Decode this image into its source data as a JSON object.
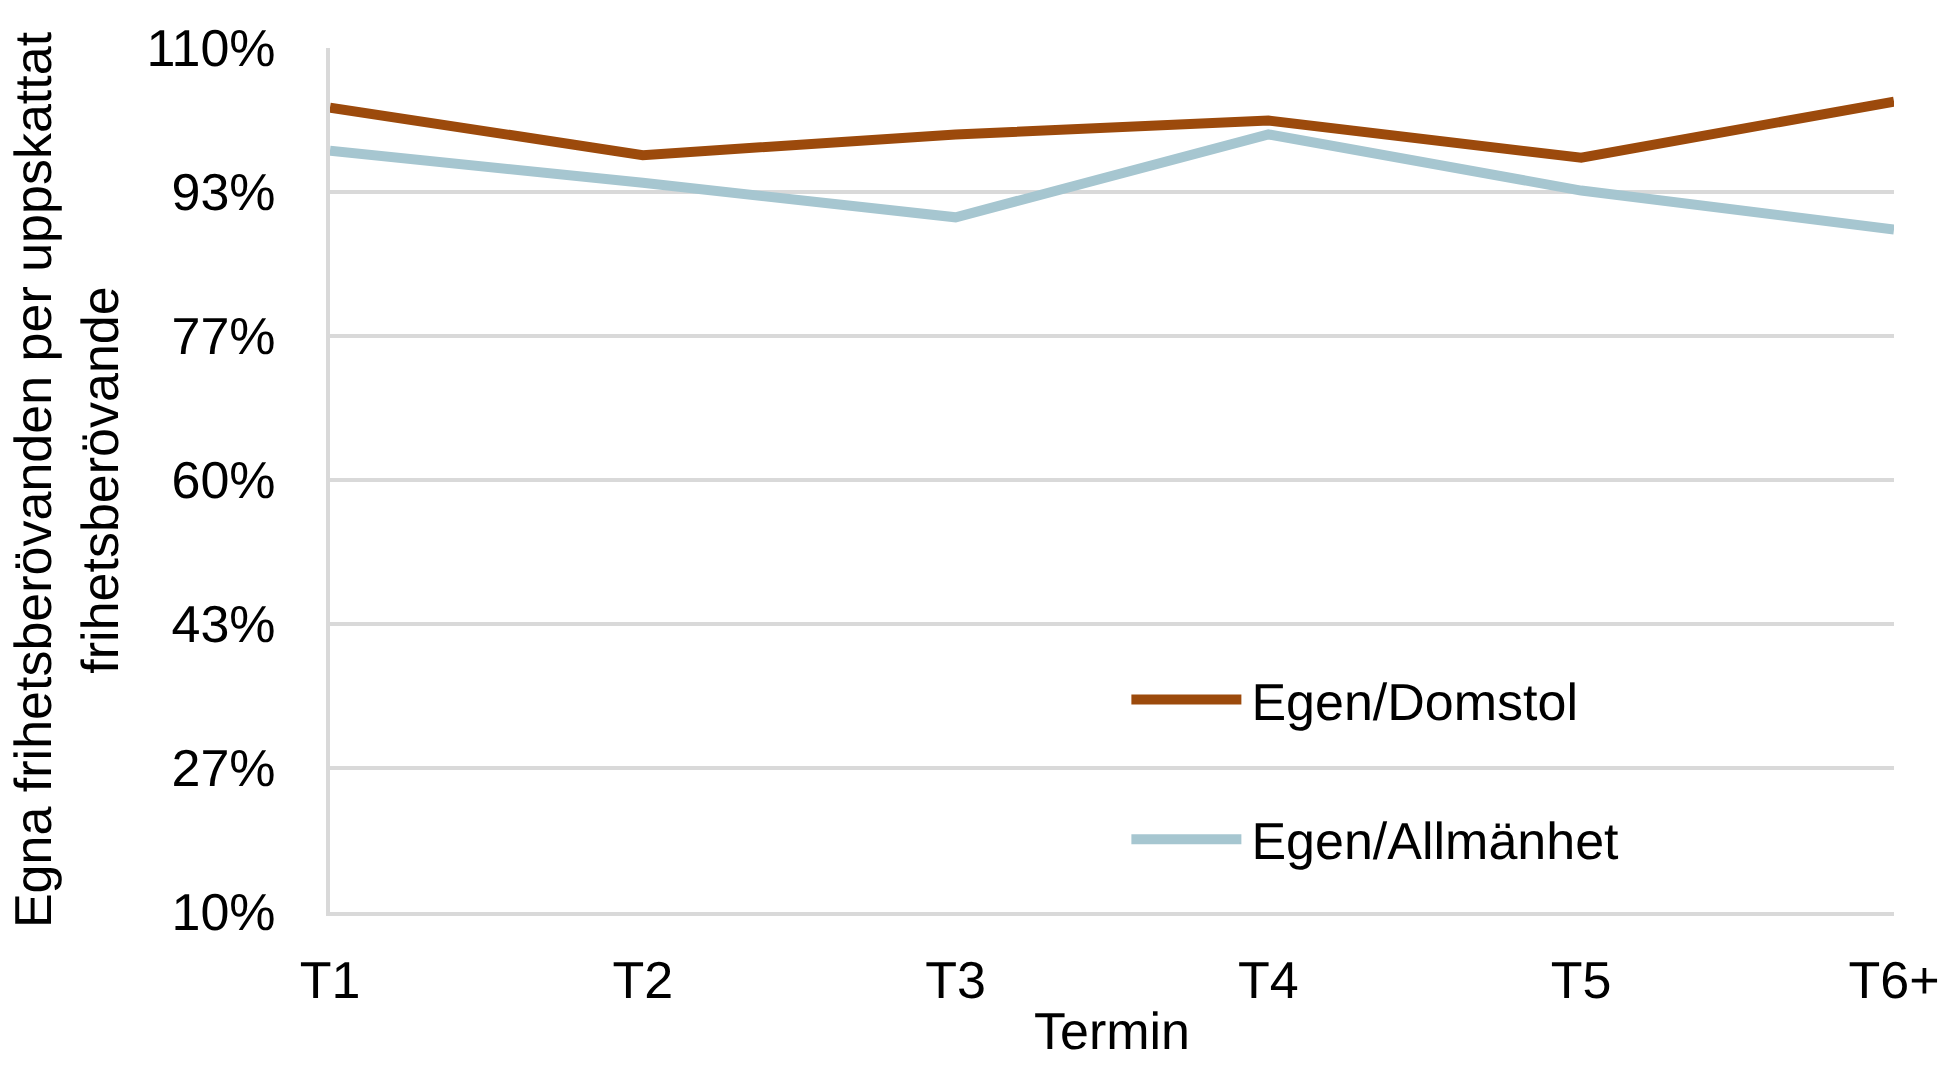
{
  "chart_data": {
    "type": "line",
    "xlabel": "Termin",
    "ylabel": "Egna frihetsberövanden per uppskattat\nfrihetsberövande",
    "categories": [
      "T1",
      "T2",
      "T3",
      "T4",
      "T5",
      "T6+"
    ],
    "series": [
      {
        "name": "Egen/Domstol",
        "color": "#9c4a0c",
        "values": [
          103.1,
          97.6,
          100.0,
          101.6,
          97.3,
          103.8
        ]
      },
      {
        "name": "Egen/Allmänhet",
        "color": "#a6c6d0",
        "values": [
          98.1,
          94.4,
          90.4,
          100.0,
          93.5,
          89.0
        ]
      }
    ],
    "ylim": [
      10,
      110
    ],
    "yticks": [
      {
        "value": 10,
        "label": "10%"
      },
      {
        "value": 26.67,
        "label": "27%"
      },
      {
        "value": 43.33,
        "label": "43%"
      },
      {
        "value": 60,
        "label": "60%"
      },
      {
        "value": 76.67,
        "label": "77%"
      },
      {
        "value": 93.33,
        "label": "93%"
      },
      {
        "value": 110,
        "label": "110%"
      }
    ],
    "grid": "y",
    "legend": "bottom right",
    "line_style": "solid"
  }
}
